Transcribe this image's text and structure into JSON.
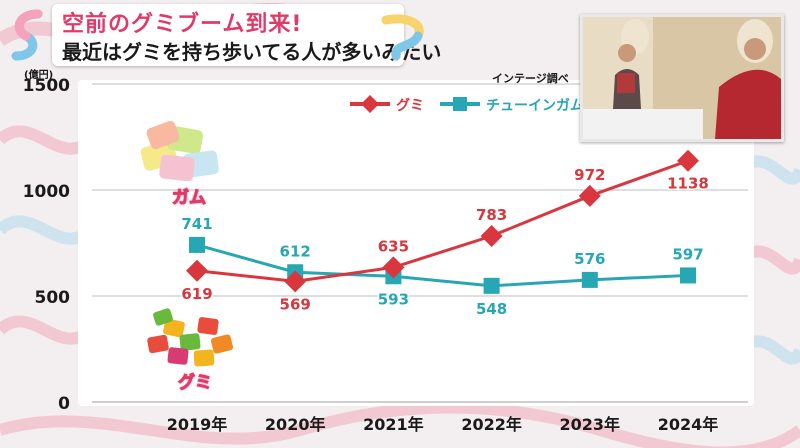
{
  "header": {
    "line1": "空前のグミブーム到来!",
    "line2": "最近はグミを持ち歩いてる人が多いみたい"
  },
  "source": "インテージ調べ",
  "unit": "(億円)",
  "photos": {
    "gum_label": "ガム",
    "gummy_label": "グミ"
  },
  "colors": {
    "gummy": "#d9363e",
    "gum": "#27a6b4",
    "grid": "#bdbdbd"
  },
  "chart_data": {
    "type": "line",
    "categories": [
      "2019年",
      "2020年",
      "2021年",
      "2022年",
      "2023年",
      "2024年"
    ],
    "ylim": [
      0,
      1500
    ],
    "yticks": [
      "0",
      "500",
      "1000",
      "1500"
    ],
    "ytick_values": [
      0,
      500,
      1000,
      1500
    ],
    "legend_position": "top-right",
    "series": [
      {
        "name": "グミ",
        "marker": "diamond",
        "values": [
          619,
          569,
          635,
          783,
          972,
          1138
        ],
        "labels": [
          "619",
          "569",
          "635",
          "783",
          "972",
          "1138"
        ],
        "label_pos": [
          "below",
          "below",
          "above",
          "above",
          "above",
          "below"
        ]
      },
      {
        "name": "チューインガム",
        "marker": "square",
        "values": [
          741,
          612,
          593,
          548,
          576,
          597
        ],
        "labels": [
          "741",
          "612",
          "593",
          "548",
          "576",
          "597"
        ],
        "label_pos": [
          "above",
          "above",
          "below",
          "below",
          "above",
          "above"
        ]
      }
    ]
  }
}
